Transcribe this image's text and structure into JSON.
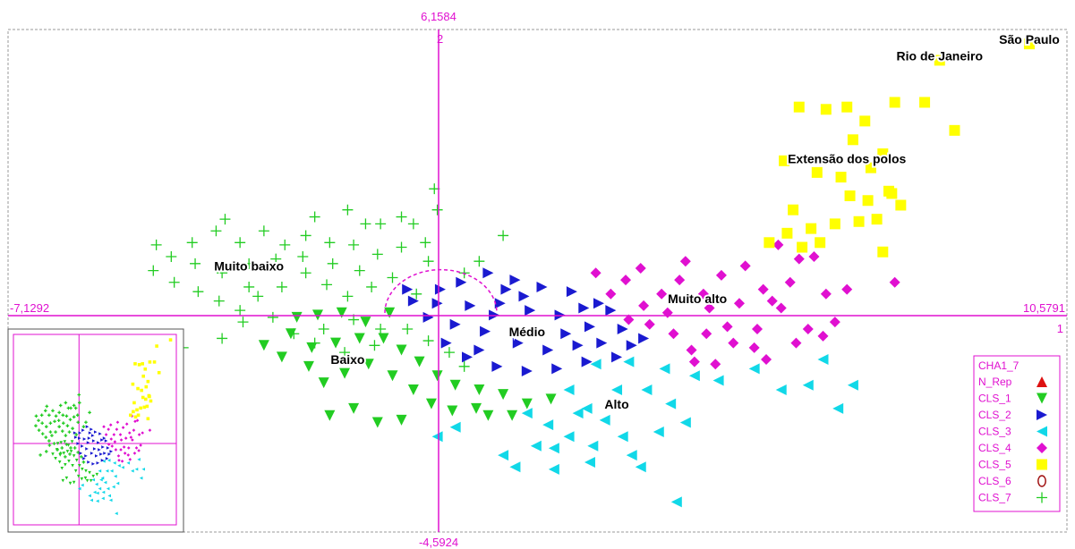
{
  "chart_data": {
    "type": "scatter",
    "axis_labels": {
      "xmin": "-7,1292",
      "xmax": "10,5791",
      "ymin": "-4,5924",
      "ymax": "6,1584",
      "axis2": "2",
      "axis1": "1"
    },
    "xlim": [
      -7.1292,
      10.5791
    ],
    "ylim": [
      -4.5924,
      6.1584
    ],
    "grid": false,
    "legend_position": "bottom-right",
    "cluster_labels": [
      {
        "text": "São Paulo",
        "x": 9.95,
        "y": 5.85
      },
      {
        "text": "Rio de Janeiro",
        "x": 8.45,
        "y": 5.5
      },
      {
        "text": "Extensão dos polos",
        "x": 6.9,
        "y": 3.3
      },
      {
        "text": "Muito baixo",
        "x": -3.1,
        "y": 1.0
      },
      {
        "text": "Muito alto",
        "x": 4.4,
        "y": 0.3
      },
      {
        "text": "Médio",
        "x": 1.55,
        "y": -0.4
      },
      {
        "text": "Baixo",
        "x": -1.45,
        "y": -1.0
      },
      {
        "text": "Alto",
        "x": 3.05,
        "y": -1.95
      }
    ],
    "legend": {
      "title": "CHA1_7",
      "items": [
        {
          "name": "N_Rep",
          "marker": "triangle-up",
          "color": "#dd1111"
        },
        {
          "name": "CLS_1",
          "marker": "triangle-down",
          "color": "#22cc22"
        },
        {
          "name": "CLS_2",
          "marker": "triangle-right",
          "color": "#1a1ad0"
        },
        {
          "name": "CLS_3",
          "marker": "triangle-left",
          "color": "#11d8e8"
        },
        {
          "name": "CLS_4",
          "marker": "diamond",
          "color": "#e010d0"
        },
        {
          "name": "CLS_5",
          "marker": "square",
          "color": "#ffff00"
        },
        {
          "name": "CLS_6",
          "marker": "ellipse",
          "color": "#a01010"
        },
        {
          "name": "CLS_7",
          "marker": "cross",
          "color": "#22cc22"
        }
      ]
    },
    "series": [
      {
        "name": "CLS_5",
        "points": [
          [
            9.95,
            5.85
          ],
          [
            8.45,
            5.5
          ],
          [
            8.7,
            4.0
          ],
          [
            8.2,
            4.6
          ],
          [
            7.7,
            4.6
          ],
          [
            6.9,
            4.5
          ],
          [
            6.55,
            4.45
          ],
          [
            6.1,
            4.5
          ],
          [
            7.2,
            4.2
          ],
          [
            7.5,
            3.5
          ],
          [
            7.0,
            3.8
          ],
          [
            6.4,
            3.1
          ],
          [
            6.8,
            3.0
          ],
          [
            7.3,
            3.2
          ],
          [
            7.6,
            2.7
          ],
          [
            7.8,
            2.4
          ],
          [
            7.4,
            2.1
          ],
          [
            7.1,
            2.05
          ],
          [
            6.7,
            2.0
          ],
          [
            6.3,
            1.9
          ],
          [
            6.0,
            2.3
          ],
          [
            5.6,
            1.6
          ],
          [
            5.9,
            1.8
          ],
          [
            6.15,
            1.5
          ],
          [
            6.45,
            1.6
          ],
          [
            7.5,
            1.4
          ],
          [
            5.85,
            3.35
          ],
          [
            7.65,
            2.65
          ],
          [
            7.25,
            2.5
          ],
          [
            6.95,
            2.6
          ]
        ]
      },
      {
        "name": "CLS_4",
        "points": [
          [
            4.5,
            0.5
          ],
          [
            4.8,
            0.9
          ],
          [
            5.2,
            1.1
          ],
          [
            5.5,
            0.6
          ],
          [
            4.1,
            0.8
          ],
          [
            3.8,
            0.5
          ],
          [
            3.5,
            0.25
          ],
          [
            3.2,
            0.8
          ],
          [
            3.6,
            -0.15
          ],
          [
            4.0,
            -0.35
          ],
          [
            4.3,
            -0.7
          ],
          [
            4.7,
            -1.0
          ],
          [
            5.0,
            -0.55
          ],
          [
            5.4,
            -0.25
          ],
          [
            5.8,
            0.2
          ],
          [
            5.95,
            0.75
          ],
          [
            6.1,
            1.25
          ],
          [
            5.75,
            1.55
          ],
          [
            6.35,
            1.3
          ],
          [
            6.55,
            0.5
          ],
          [
            6.9,
            0.6
          ],
          [
            6.7,
            -0.1
          ],
          [
            6.5,
            -0.4
          ],
          [
            4.6,
            0.2
          ],
          [
            4.9,
            -0.2
          ],
          [
            3.45,
            1.05
          ],
          [
            2.7,
            0.95
          ],
          [
            2.95,
            0.5
          ],
          [
            7.7,
            0.75
          ],
          [
            6.25,
            -0.25
          ],
          [
            5.55,
            -0.9
          ],
          [
            4.35,
            -0.95
          ],
          [
            3.9,
            0.1
          ],
          [
            5.1,
            0.3
          ],
          [
            4.2,
            1.2
          ],
          [
            5.35,
            -0.65
          ],
          [
            6.05,
            -0.55
          ],
          [
            3.25,
            -0.05
          ],
          [
            4.55,
            -0.35
          ],
          [
            5.65,
            0.35
          ]
        ]
      },
      {
        "name": "CLS_2",
        "points": [
          [
            -0.35,
            0.35
          ],
          [
            0.1,
            0.6
          ],
          [
            0.45,
            0.75
          ],
          [
            0.9,
            0.95
          ],
          [
            1.35,
            0.8
          ],
          [
            1.8,
            0.65
          ],
          [
            2.3,
            0.55
          ],
          [
            2.75,
            0.3
          ],
          [
            3.15,
            -0.25
          ],
          [
            3.5,
            -0.45
          ],
          [
            3.05,
            -0.85
          ],
          [
            2.55,
            -0.95
          ],
          [
            2.05,
            -1.1
          ],
          [
            1.55,
            -1.15
          ],
          [
            1.05,
            -1.05
          ],
          [
            0.55,
            -0.85
          ],
          [
            0.2,
            -0.55
          ],
          [
            -0.1,
            0.0
          ],
          [
            0.6,
            0.25
          ],
          [
            1.1,
            0.3
          ],
          [
            1.6,
            0.15
          ],
          [
            2.1,
            0.05
          ],
          [
            2.6,
            -0.2
          ],
          [
            0.85,
            -0.3
          ],
          [
            1.4,
            -0.55
          ],
          [
            1.9,
            -0.7
          ],
          [
            2.4,
            -0.6
          ],
          [
            0.35,
            -0.15
          ],
          [
            -0.45,
            0.6
          ],
          [
            2.95,
            0.15
          ],
          [
            1.2,
            0.6
          ],
          [
            0.75,
            -0.7
          ],
          [
            1.7,
            -0.3
          ],
          [
            2.2,
            -0.35
          ],
          [
            2.8,
            -0.55
          ],
          [
            0.05,
            0.3
          ],
          [
            1.0,
            0.05
          ],
          [
            1.5,
            0.45
          ],
          [
            2.5,
            0.2
          ],
          [
            3.3,
            -0.6
          ]
        ]
      },
      {
        "name": "CLS_3",
        "points": [
          [
            2.7,
            -1.0
          ],
          [
            3.25,
            -0.95
          ],
          [
            3.85,
            -1.1
          ],
          [
            4.35,
            -1.25
          ],
          [
            4.75,
            -1.35
          ],
          [
            5.35,
            -1.1
          ],
          [
            5.8,
            -1.55
          ],
          [
            6.25,
            -1.45
          ],
          [
            6.5,
            -0.9
          ],
          [
            6.75,
            -1.95
          ],
          [
            7.0,
            -1.45
          ],
          [
            2.25,
            -1.55
          ],
          [
            2.55,
            -1.95
          ],
          [
            2.85,
            -2.2
          ],
          [
            3.15,
            -2.55
          ],
          [
            2.65,
            -2.75
          ],
          [
            2.25,
            -2.55
          ],
          [
            1.9,
            -2.3
          ],
          [
            1.55,
            -2.05
          ],
          [
            1.7,
            -2.75
          ],
          [
            1.15,
            -2.95
          ],
          [
            1.35,
            -3.2
          ],
          [
            2.0,
            -3.25
          ],
          [
            2.6,
            -3.1
          ],
          [
            3.45,
            -3.2
          ],
          [
            3.75,
            -2.45
          ],
          [
            3.95,
            -1.85
          ],
          [
            4.2,
            -2.25
          ],
          [
            3.55,
            -1.55
          ],
          [
            3.05,
            -1.55
          ],
          [
            0.05,
            -2.55
          ],
          [
            0.35,
            -2.35
          ],
          [
            4.05,
            -3.95
          ],
          [
            2.4,
            -2.05
          ],
          [
            3.3,
            -2.95
          ],
          [
            2.0,
            -2.8
          ]
        ]
      },
      {
        "name": "CLS_1",
        "points": [
          [
            -2.4,
            -0.35
          ],
          [
            -2.05,
            -0.65
          ],
          [
            -1.65,
            -0.55
          ],
          [
            -1.25,
            -0.45
          ],
          [
            -0.85,
            -0.45
          ],
          [
            -0.55,
            -0.7
          ],
          [
            -0.25,
            -0.95
          ],
          [
            0.05,
            -1.25
          ],
          [
            0.35,
            -1.45
          ],
          [
            0.75,
            -1.55
          ],
          [
            1.15,
            -1.65
          ],
          [
            1.55,
            -1.85
          ],
          [
            1.95,
            -1.75
          ],
          [
            -2.55,
            -0.85
          ],
          [
            -2.85,
            -0.6
          ],
          [
            -2.1,
            -1.05
          ],
          [
            -1.85,
            -1.4
          ],
          [
            -1.5,
            -1.2
          ],
          [
            -1.1,
            -1.0
          ],
          [
            -0.7,
            -1.25
          ],
          [
            -0.35,
            -1.55
          ],
          [
            -0.05,
            -1.85
          ],
          [
            0.3,
            -2.0
          ],
          [
            0.7,
            -1.95
          ],
          [
            -1.35,
            -1.95
          ],
          [
            -1.75,
            -2.1
          ],
          [
            -0.95,
            -2.25
          ],
          [
            -0.55,
            -2.2
          ],
          [
            0.9,
            -2.1
          ],
          [
            1.3,
            -2.1
          ],
          [
            -2.3,
            -0.0
          ],
          [
            -1.95,
            0.05
          ],
          [
            -1.55,
            0.1
          ],
          [
            -1.15,
            -0.1
          ],
          [
            -0.75,
            0.1
          ]
        ]
      },
      {
        "name": "CLS_7",
        "points": [
          [
            -4.65,
            1.55
          ],
          [
            -4.4,
            1.3
          ],
          [
            -4.05,
            1.6
          ],
          [
            -3.65,
            1.85
          ],
          [
            -3.25,
            1.6
          ],
          [
            -2.85,
            1.85
          ],
          [
            -2.5,
            1.55
          ],
          [
            -2.15,
            1.75
          ],
          [
            -1.75,
            1.6
          ],
          [
            -1.35,
            1.55
          ],
          [
            -0.95,
            1.35
          ],
          [
            -0.55,
            1.5
          ],
          [
            -0.15,
            1.6
          ],
          [
            -0.35,
            2.0
          ],
          [
            0.05,
            2.3
          ],
          [
            0.0,
            2.75
          ],
          [
            0.75,
            1.2
          ],
          [
            1.15,
            1.75
          ],
          [
            -4.7,
            1.0
          ],
          [
            -4.35,
            0.75
          ],
          [
            -3.95,
            0.55
          ],
          [
            -3.6,
            0.35
          ],
          [
            -3.25,
            0.15
          ],
          [
            -2.95,
            0.45
          ],
          [
            -2.55,
            0.65
          ],
          [
            -2.15,
            0.95
          ],
          [
            -1.8,
            0.7
          ],
          [
            -1.45,
            0.45
          ],
          [
            -1.05,
            0.65
          ],
          [
            -0.7,
            0.85
          ],
          [
            -0.3,
            0.5
          ],
          [
            -4.0,
            1.15
          ],
          [
            -3.55,
            0.95
          ],
          [
            -3.1,
            1.15
          ],
          [
            -2.65,
            1.25
          ],
          [
            -2.2,
            1.3
          ],
          [
            -1.7,
            1.15
          ],
          [
            -1.25,
            1.0
          ],
          [
            -3.1,
            0.65
          ],
          [
            -2.7,
            0.0
          ],
          [
            -2.35,
            -0.35
          ],
          [
            -1.85,
            -0.25
          ],
          [
            -1.35,
            -0.05
          ],
          [
            -0.9,
            -0.25
          ],
          [
            -0.45,
            -0.25
          ],
          [
            -0.1,
            -0.5
          ],
          [
            0.25,
            -0.75
          ],
          [
            0.5,
            -1.05
          ],
          [
            -3.55,
            -0.45
          ],
          [
            -3.2,
            -0.1
          ],
          [
            -2.0,
            -0.55
          ],
          [
            -1.5,
            -0.75
          ],
          [
            -1.0,
            -0.6
          ],
          [
            -4.2,
            -0.65
          ],
          [
            -3.5,
            2.1
          ],
          [
            -2.0,
            2.15
          ],
          [
            -1.45,
            2.3
          ],
          [
            -0.9,
            2.0
          ],
          [
            -0.55,
            2.15
          ],
          [
            -0.1,
            1.2
          ],
          [
            0.5,
            0.95
          ],
          [
            -1.15,
            2.0
          ]
        ]
      }
    ]
  }
}
